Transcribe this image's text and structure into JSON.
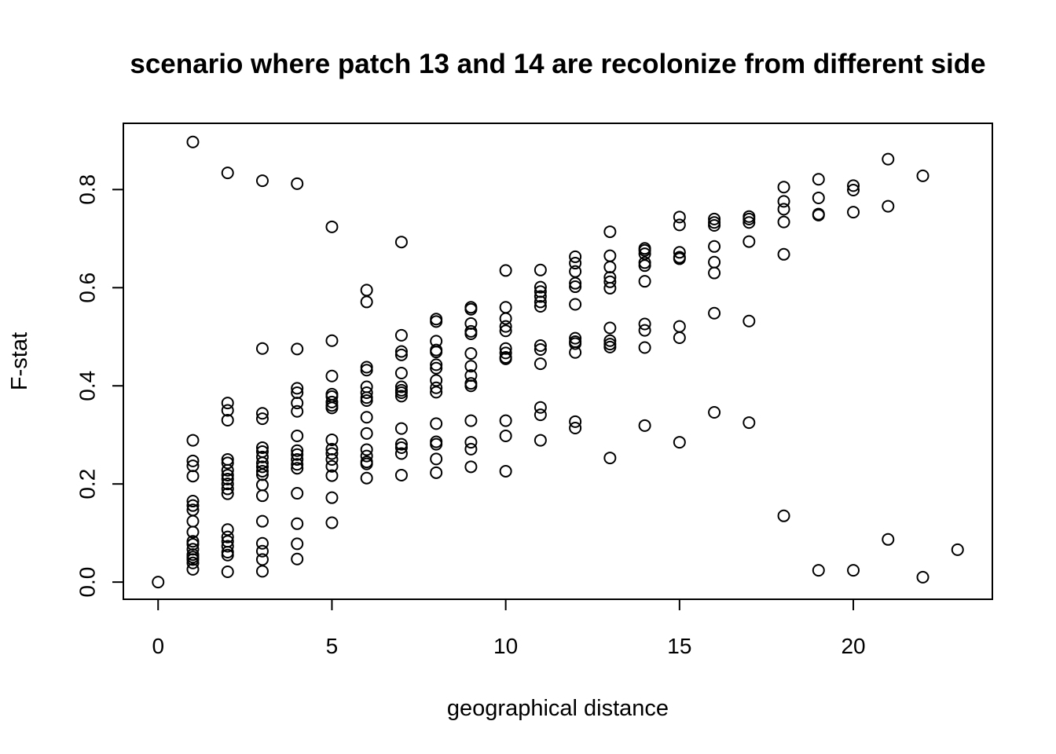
{
  "chart_data": {
    "type": "scatter",
    "title": "scenario where patch 13  and  14 are recolonize from different side",
    "xlabel": "geographical distance",
    "ylabel": "F-stat",
    "xlim": [
      -1,
      24
    ],
    "ylim": [
      -0.035,
      0.935
    ],
    "xticks": [
      0,
      5,
      10,
      15,
      20
    ],
    "yticks": [
      0.0,
      0.2,
      0.4,
      0.6,
      0.8
    ],
    "xtick_labels": [
      "0",
      "5",
      "10",
      "15",
      "20"
    ],
    "ytick_labels": [
      "0.0",
      "0.2",
      "0.4",
      "0.6",
      "0.8"
    ],
    "grid": false,
    "legend": "none",
    "marker": "open-circle",
    "series": [
      {
        "points": [
          [
            0,
            0.0
          ],
          [
            1,
            0.897
          ],
          [
            1,
            0.289
          ],
          [
            1,
            0.247
          ],
          [
            1,
            0.237
          ],
          [
            1,
            0.216
          ],
          [
            1,
            0.165
          ],
          [
            1,
            0.156
          ],
          [
            1,
            0.147
          ],
          [
            1,
            0.124
          ],
          [
            1,
            0.102
          ],
          [
            1,
            0.083
          ],
          [
            1,
            0.077
          ],
          [
            1,
            0.067
          ],
          [
            1,
            0.056
          ],
          [
            1,
            0.051
          ],
          [
            1,
            0.046
          ],
          [
            1,
            0.039
          ],
          [
            1,
            0.026
          ],
          [
            2,
            0.834
          ],
          [
            2,
            0.365
          ],
          [
            2,
            0.35
          ],
          [
            2,
            0.33
          ],
          [
            2,
            0.25
          ],
          [
            2,
            0.243
          ],
          [
            2,
            0.228
          ],
          [
            2,
            0.218
          ],
          [
            2,
            0.21
          ],
          [
            2,
            0.2
          ],
          [
            2,
            0.19
          ],
          [
            2,
            0.18
          ],
          [
            2,
            0.107
          ],
          [
            2,
            0.092
          ],
          [
            2,
            0.083
          ],
          [
            2,
            0.073
          ],
          [
            2,
            0.061
          ],
          [
            2,
            0.055
          ],
          [
            2,
            0.021
          ],
          [
            3,
            0.818
          ],
          [
            3,
            0.476
          ],
          [
            3,
            0.344
          ],
          [
            3,
            0.333
          ],
          [
            3,
            0.274
          ],
          [
            3,
            0.266
          ],
          [
            3,
            0.255
          ],
          [
            3,
            0.243
          ],
          [
            3,
            0.235
          ],
          [
            3,
            0.226
          ],
          [
            3,
            0.219
          ],
          [
            3,
            0.198
          ],
          [
            3,
            0.176
          ],
          [
            3,
            0.124
          ],
          [
            3,
            0.079
          ],
          [
            3,
            0.063
          ],
          [
            3,
            0.046
          ],
          [
            3,
            0.022
          ],
          [
            4,
            0.812
          ],
          [
            4,
            0.475
          ],
          [
            4,
            0.395
          ],
          [
            4,
            0.386
          ],
          [
            4,
            0.365
          ],
          [
            4,
            0.348
          ],
          [
            4,
            0.298
          ],
          [
            4,
            0.268
          ],
          [
            4,
            0.26
          ],
          [
            4,
            0.25
          ],
          [
            4,
            0.24
          ],
          [
            4,
            0.232
          ],
          [
            4,
            0.181
          ],
          [
            4,
            0.119
          ],
          [
            4,
            0.078
          ],
          [
            4,
            0.047
          ],
          [
            5,
            0.724
          ],
          [
            5,
            0.492
          ],
          [
            5,
            0.42
          ],
          [
            5,
            0.383
          ],
          [
            5,
            0.378
          ],
          [
            5,
            0.367
          ],
          [
            5,
            0.36
          ],
          [
            5,
            0.355
          ],
          [
            5,
            0.29
          ],
          [
            5,
            0.271
          ],
          [
            5,
            0.262
          ],
          [
            5,
            0.25
          ],
          [
            5,
            0.236
          ],
          [
            5,
            0.217
          ],
          [
            5,
            0.172
          ],
          [
            5,
            0.121
          ],
          [
            6,
            0.595
          ],
          [
            6,
            0.571
          ],
          [
            6,
            0.438
          ],
          [
            6,
            0.432
          ],
          [
            6,
            0.398
          ],
          [
            6,
            0.386
          ],
          [
            6,
            0.376
          ],
          [
            6,
            0.37
          ],
          [
            6,
            0.336
          ],
          [
            6,
            0.303
          ],
          [
            6,
            0.27
          ],
          [
            6,
            0.257
          ],
          [
            6,
            0.245
          ],
          [
            6,
            0.241
          ],
          [
            6,
            0.212
          ],
          [
            7,
            0.693
          ],
          [
            7,
            0.503
          ],
          [
            7,
            0.47
          ],
          [
            7,
            0.463
          ],
          [
            7,
            0.426
          ],
          [
            7,
            0.398
          ],
          [
            7,
            0.391
          ],
          [
            7,
            0.386
          ],
          [
            7,
            0.379
          ],
          [
            7,
            0.313
          ],
          [
            7,
            0.281
          ],
          [
            7,
            0.274
          ],
          [
            7,
            0.262
          ],
          [
            7,
            0.218
          ],
          [
            8,
            0.536
          ],
          [
            8,
            0.531
          ],
          [
            8,
            0.491
          ],
          [
            8,
            0.473
          ],
          [
            8,
            0.469
          ],
          [
            8,
            0.443
          ],
          [
            8,
            0.436
          ],
          [
            8,
            0.411
          ],
          [
            8,
            0.396
          ],
          [
            8,
            0.387
          ],
          [
            8,
            0.323
          ],
          [
            8,
            0.286
          ],
          [
            8,
            0.281
          ],
          [
            8,
            0.251
          ],
          [
            8,
            0.223
          ],
          [
            9,
            0.56
          ],
          [
            9,
            0.556
          ],
          [
            9,
            0.527
          ],
          [
            9,
            0.511
          ],
          [
            9,
            0.506
          ],
          [
            9,
            0.466
          ],
          [
            9,
            0.44
          ],
          [
            9,
            0.421
          ],
          [
            9,
            0.405
          ],
          [
            9,
            0.4
          ],
          [
            9,
            0.329
          ],
          [
            9,
            0.285
          ],
          [
            9,
            0.271
          ],
          [
            9,
            0.235
          ],
          [
            10,
            0.635
          ],
          [
            10,
            0.56
          ],
          [
            10,
            0.537
          ],
          [
            10,
            0.521
          ],
          [
            10,
            0.512
          ],
          [
            10,
            0.476
          ],
          [
            10,
            0.467
          ],
          [
            10,
            0.458
          ],
          [
            10,
            0.455
          ],
          [
            10,
            0.329
          ],
          [
            10,
            0.298
          ],
          [
            10,
            0.226
          ],
          [
            11,
            0.636
          ],
          [
            11,
            0.601
          ],
          [
            11,
            0.592
          ],
          [
            11,
            0.582
          ],
          [
            11,
            0.571
          ],
          [
            11,
            0.562
          ],
          [
            11,
            0.482
          ],
          [
            11,
            0.474
          ],
          [
            11,
            0.445
          ],
          [
            11,
            0.356
          ],
          [
            11,
            0.341
          ],
          [
            11,
            0.289
          ],
          [
            12,
            0.663
          ],
          [
            12,
            0.65
          ],
          [
            12,
            0.633
          ],
          [
            12,
            0.609
          ],
          [
            12,
            0.602
          ],
          [
            12,
            0.566
          ],
          [
            12,
            0.497
          ],
          [
            12,
            0.49
          ],
          [
            12,
            0.486
          ],
          [
            12,
            0.468
          ],
          [
            12,
            0.327
          ],
          [
            12,
            0.314
          ],
          [
            13,
            0.714
          ],
          [
            13,
            0.665
          ],
          [
            13,
            0.642
          ],
          [
            13,
            0.621
          ],
          [
            13,
            0.612
          ],
          [
            13,
            0.599
          ],
          [
            13,
            0.518
          ],
          [
            13,
            0.492
          ],
          [
            13,
            0.485
          ],
          [
            13,
            0.479
          ],
          [
            13,
            0.253
          ],
          [
            14,
            0.68
          ],
          [
            14,
            0.676
          ],
          [
            14,
            0.669
          ],
          [
            14,
            0.651
          ],
          [
            14,
            0.645
          ],
          [
            14,
            0.613
          ],
          [
            14,
            0.526
          ],
          [
            14,
            0.513
          ],
          [
            14,
            0.478
          ],
          [
            14,
            0.319
          ],
          [
            15,
            0.744
          ],
          [
            15,
            0.728
          ],
          [
            15,
            0.672
          ],
          [
            15,
            0.662
          ],
          [
            15,
            0.659
          ],
          [
            15,
            0.521
          ],
          [
            15,
            0.498
          ],
          [
            15,
            0.285
          ],
          [
            16,
            0.74
          ],
          [
            16,
            0.733
          ],
          [
            16,
            0.727
          ],
          [
            16,
            0.684
          ],
          [
            16,
            0.652
          ],
          [
            16,
            0.63
          ],
          [
            16,
            0.548
          ],
          [
            16,
            0.346
          ],
          [
            17,
            0.745
          ],
          [
            17,
            0.74
          ],
          [
            17,
            0.733
          ],
          [
            17,
            0.694
          ],
          [
            17,
            0.532
          ],
          [
            17,
            0.325
          ],
          [
            18,
            0.805
          ],
          [
            18,
            0.776
          ],
          [
            18,
            0.76
          ],
          [
            18,
            0.734
          ],
          [
            18,
            0.668
          ],
          [
            18,
            0.135
          ],
          [
            19,
            0.821
          ],
          [
            19,
            0.783
          ],
          [
            19,
            0.75
          ],
          [
            19,
            0.748
          ],
          [
            19,
            0.024
          ],
          [
            20,
            0.808
          ],
          [
            20,
            0.799
          ],
          [
            20,
            0.754
          ],
          [
            20,
            0.024
          ],
          [
            21,
            0.862
          ],
          [
            21,
            0.766
          ],
          [
            21,
            0.087
          ],
          [
            22,
            0.828
          ],
          [
            22,
            0.01
          ],
          [
            23,
            0.066
          ]
        ]
      }
    ]
  }
}
